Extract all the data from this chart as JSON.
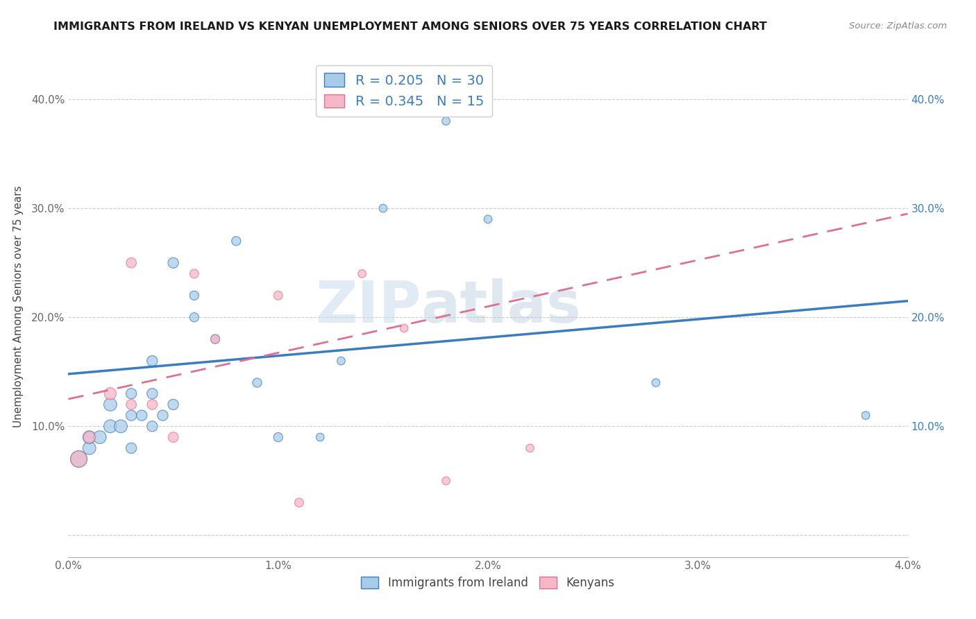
{
  "title": "IMMIGRANTS FROM IRELAND VS KENYAN UNEMPLOYMENT AMONG SENIORS OVER 75 YEARS CORRELATION CHART",
  "source": "Source: ZipAtlas.com",
  "ylabel": "Unemployment Among Seniors over 75 years",
  "legend_label1": "Immigrants from Ireland",
  "legend_label2": "Kenyans",
  "r1": 0.205,
  "n1": 30,
  "r2": 0.345,
  "n2": 15,
  "color1": "#a8cce8",
  "color2": "#f4b8c8",
  "line_color1": "#3a7cc1",
  "line_color2": "#e07090",
  "watermark_text": "ZIP",
  "watermark_text2": "atlas",
  "xlim": [
    0.0,
    0.04
  ],
  "ylim": [
    -0.02,
    0.44
  ],
  "blue_points_x": [
    0.0005,
    0.001,
    0.001,
    0.0015,
    0.002,
    0.002,
    0.0025,
    0.003,
    0.003,
    0.003,
    0.0035,
    0.004,
    0.004,
    0.004,
    0.0045,
    0.005,
    0.005,
    0.006,
    0.006,
    0.007,
    0.008,
    0.009,
    0.01,
    0.012,
    0.013,
    0.015,
    0.018,
    0.02,
    0.028,
    0.038
  ],
  "blue_points_y": [
    0.07,
    0.08,
    0.09,
    0.09,
    0.1,
    0.12,
    0.1,
    0.13,
    0.11,
    0.08,
    0.11,
    0.1,
    0.13,
    0.16,
    0.11,
    0.12,
    0.25,
    0.2,
    0.22,
    0.18,
    0.27,
    0.14,
    0.09,
    0.09,
    0.16,
    0.3,
    0.38,
    0.29,
    0.14,
    0.11
  ],
  "pink_points_x": [
    0.0005,
    0.001,
    0.002,
    0.003,
    0.003,
    0.004,
    0.005,
    0.006,
    0.007,
    0.01,
    0.011,
    0.014,
    0.016,
    0.018,
    0.022
  ],
  "pink_points_y": [
    0.07,
    0.09,
    0.13,
    0.12,
    0.25,
    0.12,
    0.09,
    0.24,
    0.18,
    0.22,
    0.03,
    0.24,
    0.19,
    0.05,
    0.08
  ],
  "blue_trend_x0": 0.0,
  "blue_trend_y0": 0.148,
  "blue_trend_x1": 0.04,
  "blue_trend_y1": 0.215,
  "pink_trend_x0": 0.0,
  "pink_trend_y0": 0.125,
  "pink_trend_x1": 0.04,
  "pink_trend_y1": 0.295,
  "yticks": [
    0.0,
    0.1,
    0.2,
    0.3,
    0.4
  ],
  "ytick_labels_left": [
    "",
    "10.0%",
    "20.0%",
    "30.0%",
    "40.0%"
  ],
  "ytick_labels_right": [
    "",
    "10.0%",
    "20.0%",
    "30.0%",
    "40.0%"
  ],
  "xticks": [
    0.0,
    0.01,
    0.02,
    0.03,
    0.04
  ],
  "xtick_labels": [
    "0.0%",
    "1.0%",
    "2.0%",
    "3.0%",
    "4.0%"
  ],
  "bubble_scale": 1.0
}
